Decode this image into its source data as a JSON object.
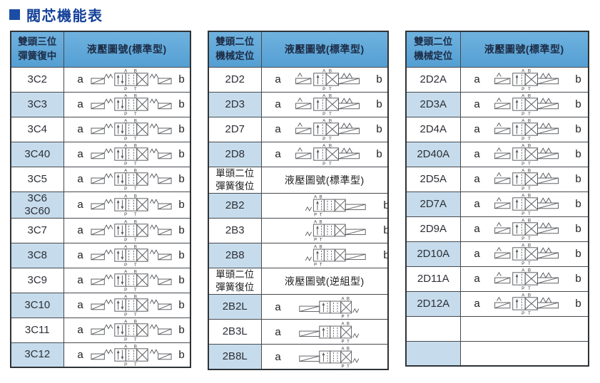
{
  "page_title": "閥芯機能表",
  "colors": {
    "title_blue": "#14409a",
    "bullet_blue": "#1c4da5",
    "header_bg": "#5aa5d8",
    "alt_row_bg": "#c6dcec",
    "border": "#46494e"
  },
  "symbols": {
    "port_labels": [
      "A",
      "B",
      "P",
      "T"
    ],
    "legend": {
      "3c": "valve-3pos-solenoid-spring-centered",
      "2d": "valve-2pos-mechanical-detent",
      "2b": "valve-2pos-single-solenoid-spring-return",
      "2bl": "valve-2pos-single-solenoid-spring-return-reverse"
    }
  },
  "tables": [
    {
      "name": "three-position-spring-centered",
      "sections": [
        {
          "kind": "primary",
          "header_left": "雙頭三位\n彈簧復中",
          "header_right": "液壓圖號(標準型)",
          "rows": [
            {
              "code": "3C2",
              "a": "a",
              "b": "b",
              "sym": "3c"
            },
            {
              "code": "3C3",
              "a": "a",
              "b": "b",
              "sym": "3c"
            },
            {
              "code": "3C4",
              "a": "a",
              "b": "b",
              "sym": "3c"
            },
            {
              "code": "3C40",
              "a": "a",
              "b": "b",
              "sym": "3c"
            },
            {
              "code": "3C5",
              "a": "a",
              "b": "b",
              "sym": "3c"
            },
            {
              "code": "3C6\n3C60",
              "a": "a",
              "b": "b",
              "sym": "3c"
            },
            {
              "code": "3C7",
              "a": "a",
              "b": "b",
              "sym": "3c"
            },
            {
              "code": "3C8",
              "a": "a",
              "b": "b",
              "sym": "3c"
            },
            {
              "code": "3C9",
              "a": "a",
              "b": "b",
              "sym": "3c"
            },
            {
              "code": "3C10",
              "a": "a",
              "b": "b",
              "sym": "3c"
            },
            {
              "code": "3C11",
              "a": "a",
              "b": "b",
              "sym": "3c"
            },
            {
              "code": "3C12",
              "a": "a",
              "b": "b",
              "sym": "3c"
            }
          ]
        }
      ]
    },
    {
      "name": "two-position-detent-and-spring-return",
      "sections": [
        {
          "kind": "primary",
          "header_left": "雙頭二位\n機械定位",
          "header_right": "液壓圖號(標準型)",
          "rows": [
            {
              "code": "2D2",
              "a": "a",
              "b": "b",
              "sym": "2d"
            },
            {
              "code": "2D3",
              "a": "a",
              "b": "b",
              "sym": "2d"
            },
            {
              "code": "2D7",
              "a": "a",
              "b": "b",
              "sym": "2d"
            },
            {
              "code": "2D8",
              "a": "a",
              "b": "b",
              "sym": "2d"
            }
          ]
        },
        {
          "kind": "secondary",
          "header_left": "單頭二位\n彈簧復位",
          "header_right": "液壓圖號(標準型)",
          "rows": [
            {
              "code": "2B2",
              "a": "",
              "b": "b",
              "sym": "2b"
            },
            {
              "code": "2B3",
              "a": "",
              "b": "b",
              "sym": "2b"
            },
            {
              "code": "2B8",
              "a": "",
              "b": "b",
              "sym": "2b"
            }
          ]
        },
        {
          "kind": "secondary",
          "header_left": "單頭二位\n彈簧復位",
          "header_right": "液壓圖號(逆組型)",
          "rows": [
            {
              "code": "2B2L",
              "a": "a",
              "b": "",
              "sym": "2bl"
            },
            {
              "code": "2B3L",
              "a": "a",
              "b": "",
              "sym": "2bl"
            },
            {
              "code": "2B8L",
              "a": "a",
              "b": "",
              "sym": "2bl"
            }
          ]
        }
      ]
    },
    {
      "name": "two-position-detent-a-series",
      "sections": [
        {
          "kind": "primary",
          "header_left": "雙頭二位\n機械定位",
          "header_right": "液壓圖號(標準型)",
          "rows": [
            {
              "code": "2D2A",
              "a": "a",
              "b": "b",
              "sym": "2d"
            },
            {
              "code": "2D3A",
              "a": "a",
              "b": "b",
              "sym": "2d"
            },
            {
              "code": "2D4A",
              "a": "a",
              "b": "b",
              "sym": "2d"
            },
            {
              "code": "2D40A",
              "a": "a",
              "b": "b",
              "sym": "2d"
            },
            {
              "code": "2D5A",
              "a": "a",
              "b": "b",
              "sym": "2d"
            },
            {
              "code": "2D7A",
              "a": "a",
              "b": "b",
              "sym": "2d"
            },
            {
              "code": "2D9A",
              "a": "a",
              "b": "b",
              "sym": "2d"
            },
            {
              "code": "2D10A",
              "a": "a",
              "b": "b",
              "sym": "2d"
            },
            {
              "code": "2D11A",
              "a": "a",
              "b": "b",
              "sym": "2d"
            },
            {
              "code": "2D12A",
              "a": "a",
              "b": "b",
              "sym": "2d"
            },
            {
              "code": "",
              "a": "",
              "b": "",
              "sym": null
            },
            {
              "code": "",
              "a": "",
              "b": "",
              "sym": null
            }
          ]
        }
      ]
    }
  ]
}
